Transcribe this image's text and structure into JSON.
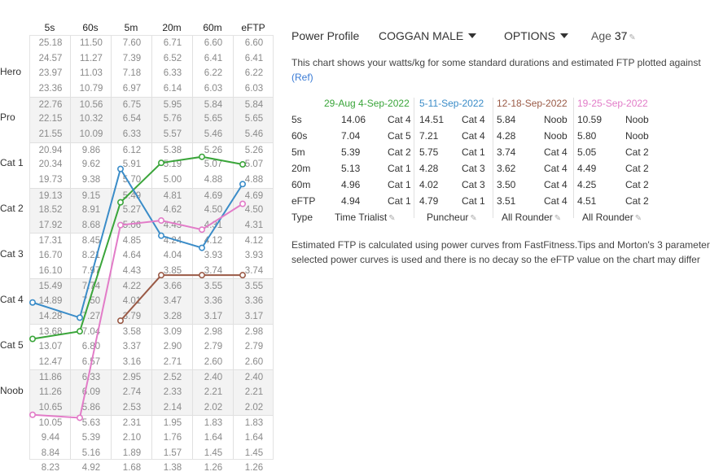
{
  "table": {
    "columns": [
      "5s",
      "60s",
      "5m",
      "20m",
      "60m",
      "eFTP"
    ],
    "row_labels": [
      {
        "label": "Hero",
        "row": 2
      },
      {
        "label": "Pro",
        "row": 5
      },
      {
        "label": "Cat 1",
        "row": 8
      },
      {
        "label": "Cat 2",
        "row": 11
      },
      {
        "label": "Cat 3",
        "row": 14
      },
      {
        "label": "Cat 4",
        "row": 17
      },
      {
        "label": "Cat 5",
        "row": 20
      },
      {
        "label": "Noob",
        "row": 23
      }
    ],
    "rows": [
      [
        "25.18",
        "11.50",
        "7.60",
        "6.71",
        "6.60",
        "6.60"
      ],
      [
        "24.57",
        "11.27",
        "7.39",
        "6.52",
        "6.41",
        "6.41"
      ],
      [
        "23.97",
        "11.03",
        "7.18",
        "6.33",
        "6.22",
        "6.22"
      ],
      [
        "23.36",
        "10.79",
        "6.97",
        "6.14",
        "6.03",
        "6.03"
      ],
      [
        "22.76",
        "10.56",
        "6.75",
        "5.95",
        "5.84",
        "5.84"
      ],
      [
        "22.15",
        "10.32",
        "6.54",
        "5.76",
        "5.65",
        "5.65"
      ],
      [
        "21.55",
        "10.09",
        "6.33",
        "5.57",
        "5.46",
        "5.46"
      ],
      [
        "20.94",
        "9.86",
        "6.12",
        "5.38",
        "5.26",
        "5.26"
      ],
      [
        "20.34",
        "9.62",
        "5.91",
        "5.19",
        "5.07",
        "5.07"
      ],
      [
        "19.73",
        "9.38",
        "5.70",
        "5.00",
        "4.88",
        "4.88"
      ],
      [
        "19.13",
        "9.15",
        "5.49",
        "4.81",
        "4.69",
        "4.69"
      ],
      [
        "18.52",
        "8.91",
        "5.27",
        "4.62",
        "4.50",
        "4.50"
      ],
      [
        "17.92",
        "8.68",
        "5.06",
        "4.43",
        "4.31",
        "4.31"
      ],
      [
        "17.31",
        "8.45",
        "4.85",
        "4.24",
        "4.12",
        "4.12"
      ],
      [
        "16.70",
        "8.21",
        "4.64",
        "4.04",
        "3.93",
        "3.93"
      ],
      [
        "16.10",
        "7.97",
        "4.43",
        "3.85",
        "3.74",
        "3.74"
      ],
      [
        "15.49",
        "7.74",
        "4.22",
        "3.66",
        "3.55",
        "3.55"
      ],
      [
        "14.89",
        "7.50",
        "4.01",
        "3.47",
        "3.36",
        "3.36"
      ],
      [
        "14.28",
        "7.27",
        "3.79",
        "3.28",
        "3.17",
        "3.17"
      ],
      [
        "13.68",
        "7.04",
        "3.58",
        "3.09",
        "2.98",
        "2.98"
      ],
      [
        "13.07",
        "6.80",
        "3.37",
        "2.90",
        "2.79",
        "2.79"
      ],
      [
        "12.47",
        "6.57",
        "3.16",
        "2.71",
        "2.60",
        "2.60"
      ],
      [
        "11.86",
        "6.33",
        "2.95",
        "2.52",
        "2.40",
        "2.40"
      ],
      [
        "11.26",
        "6.09",
        "2.74",
        "2.33",
        "2.21",
        "2.21"
      ],
      [
        "10.65",
        "5.86",
        "2.53",
        "2.14",
        "2.02",
        "2.02"
      ],
      [
        "10.05",
        "5.63",
        "2.31",
        "1.95",
        "1.83",
        "1.83"
      ],
      [
        "9.44",
        "5.39",
        "2.10",
        "1.76",
        "1.64",
        "1.64"
      ],
      [
        "8.84",
        "5.16",
        "1.89",
        "1.57",
        "1.45",
        "1.45"
      ],
      [
        "8.23",
        "4.92",
        "1.68",
        "1.38",
        "1.26",
        "1.26"
      ]
    ],
    "shaded_rows": [
      4,
      5,
      6,
      10,
      11,
      12,
      16,
      17,
      18,
      22,
      23,
      24
    ],
    "separator_rows": [
      4,
      7,
      10,
      13,
      16,
      19,
      22,
      25
    ]
  },
  "chart_data": {
    "type": "line",
    "x": [
      "5s",
      "60s",
      "5m",
      "20m",
      "60m",
      "eFTP"
    ],
    "series": [
      {
        "name": "29-Aug 4-Sep-2022",
        "color": "#3aa53a",
        "values": [
          14.06,
          7.04,
          5.39,
          5.13,
          4.96,
          4.94
        ],
        "ranks": [
          19.5,
          19.0,
          10.5,
          7.9,
          7.5,
          8.0
        ]
      },
      {
        "name": "5-11-Sep-2022",
        "color": "#3a8cc8",
        "values": [
          14.51,
          7.21,
          5.75,
          4.28,
          4.02,
          4.79
        ],
        "ranks": [
          17.1,
          18.1,
          8.3,
          12.7,
          13.5,
          9.3
        ]
      },
      {
        "name": "12-18-Sep-2022",
        "color": "#9a5a46",
        "values": [
          5.84,
          4.28,
          3.74,
          3.62,
          3.5,
          3.51
        ],
        "ranks": [
          null,
          null,
          18.3,
          15.3,
          15.3,
          15.3
        ]
      },
      {
        "name": "19-25-Sep-2022",
        "color": "#e27cc8",
        "values": [
          10.59,
          5.8,
          5.05,
          4.49,
          4.25,
          4.51
        ],
        "ranks": [
          24.5,
          24.7,
          12.0,
          11.7,
          12.3,
          10.6
        ]
      }
    ]
  },
  "profile": {
    "label": "Power Profile",
    "model": "COGGAN MALE",
    "options": "OPTIONS",
    "age_label": "Age",
    "age": "37"
  },
  "description": {
    "line1": "This chart shows your watts/kg for some standard durations and estimated FTP plotted against",
    "ref": "(Ref)"
  },
  "summary": {
    "headers": [
      "29-Aug 4-Sep-2022",
      "5-11-Sep-2022",
      "12-18-Sep-2022",
      "19-25-Sep-2022"
    ],
    "header_colors": [
      "#3aa53a",
      "#3a8cc8",
      "#9a5a46",
      "#e27cc8"
    ],
    "row_labels": [
      "5s",
      "60s",
      "5m",
      "20m",
      "60m",
      "eFTP",
      "Type"
    ],
    "rows": [
      [
        [
          "14.06",
          "Cat 4"
        ],
        [
          "14.51",
          "Cat 4"
        ],
        [
          "5.84",
          "Noob"
        ],
        [
          "10.59",
          "Noob"
        ]
      ],
      [
        [
          "7.04",
          "Cat 5"
        ],
        [
          "7.21",
          "Cat 4"
        ],
        [
          "4.28",
          "Noob"
        ],
        [
          "5.80",
          "Noob"
        ]
      ],
      [
        [
          "5.39",
          "Cat 2"
        ],
        [
          "5.75",
          "Cat 1"
        ],
        [
          "3.74",
          "Cat 4"
        ],
        [
          "5.05",
          "Cat 2"
        ]
      ],
      [
        [
          "5.13",
          "Cat 1"
        ],
        [
          "4.28",
          "Cat 3"
        ],
        [
          "3.62",
          "Cat 4"
        ],
        [
          "4.49",
          "Cat 2"
        ]
      ],
      [
        [
          "4.96",
          "Cat 1"
        ],
        [
          "4.02",
          "Cat 3"
        ],
        [
          "3.50",
          "Cat 4"
        ],
        [
          "4.25",
          "Cat 2"
        ]
      ],
      [
        [
          "4.94",
          "Cat 1"
        ],
        [
          "4.79",
          "Cat 1"
        ],
        [
          "3.51",
          "Cat 4"
        ],
        [
          "4.51",
          "Cat 2"
        ]
      ]
    ],
    "types": [
      "Time Trialist",
      "Puncheur",
      "All Rounder",
      "All Rounder"
    ]
  },
  "footer": {
    "line1": "Estimated FTP is calculated using power curves from FastFitness.Tips and Morton's 3 parameter",
    "line2": "selected power curves is used and there is no decay so the eFTP value on the chart may differ"
  }
}
